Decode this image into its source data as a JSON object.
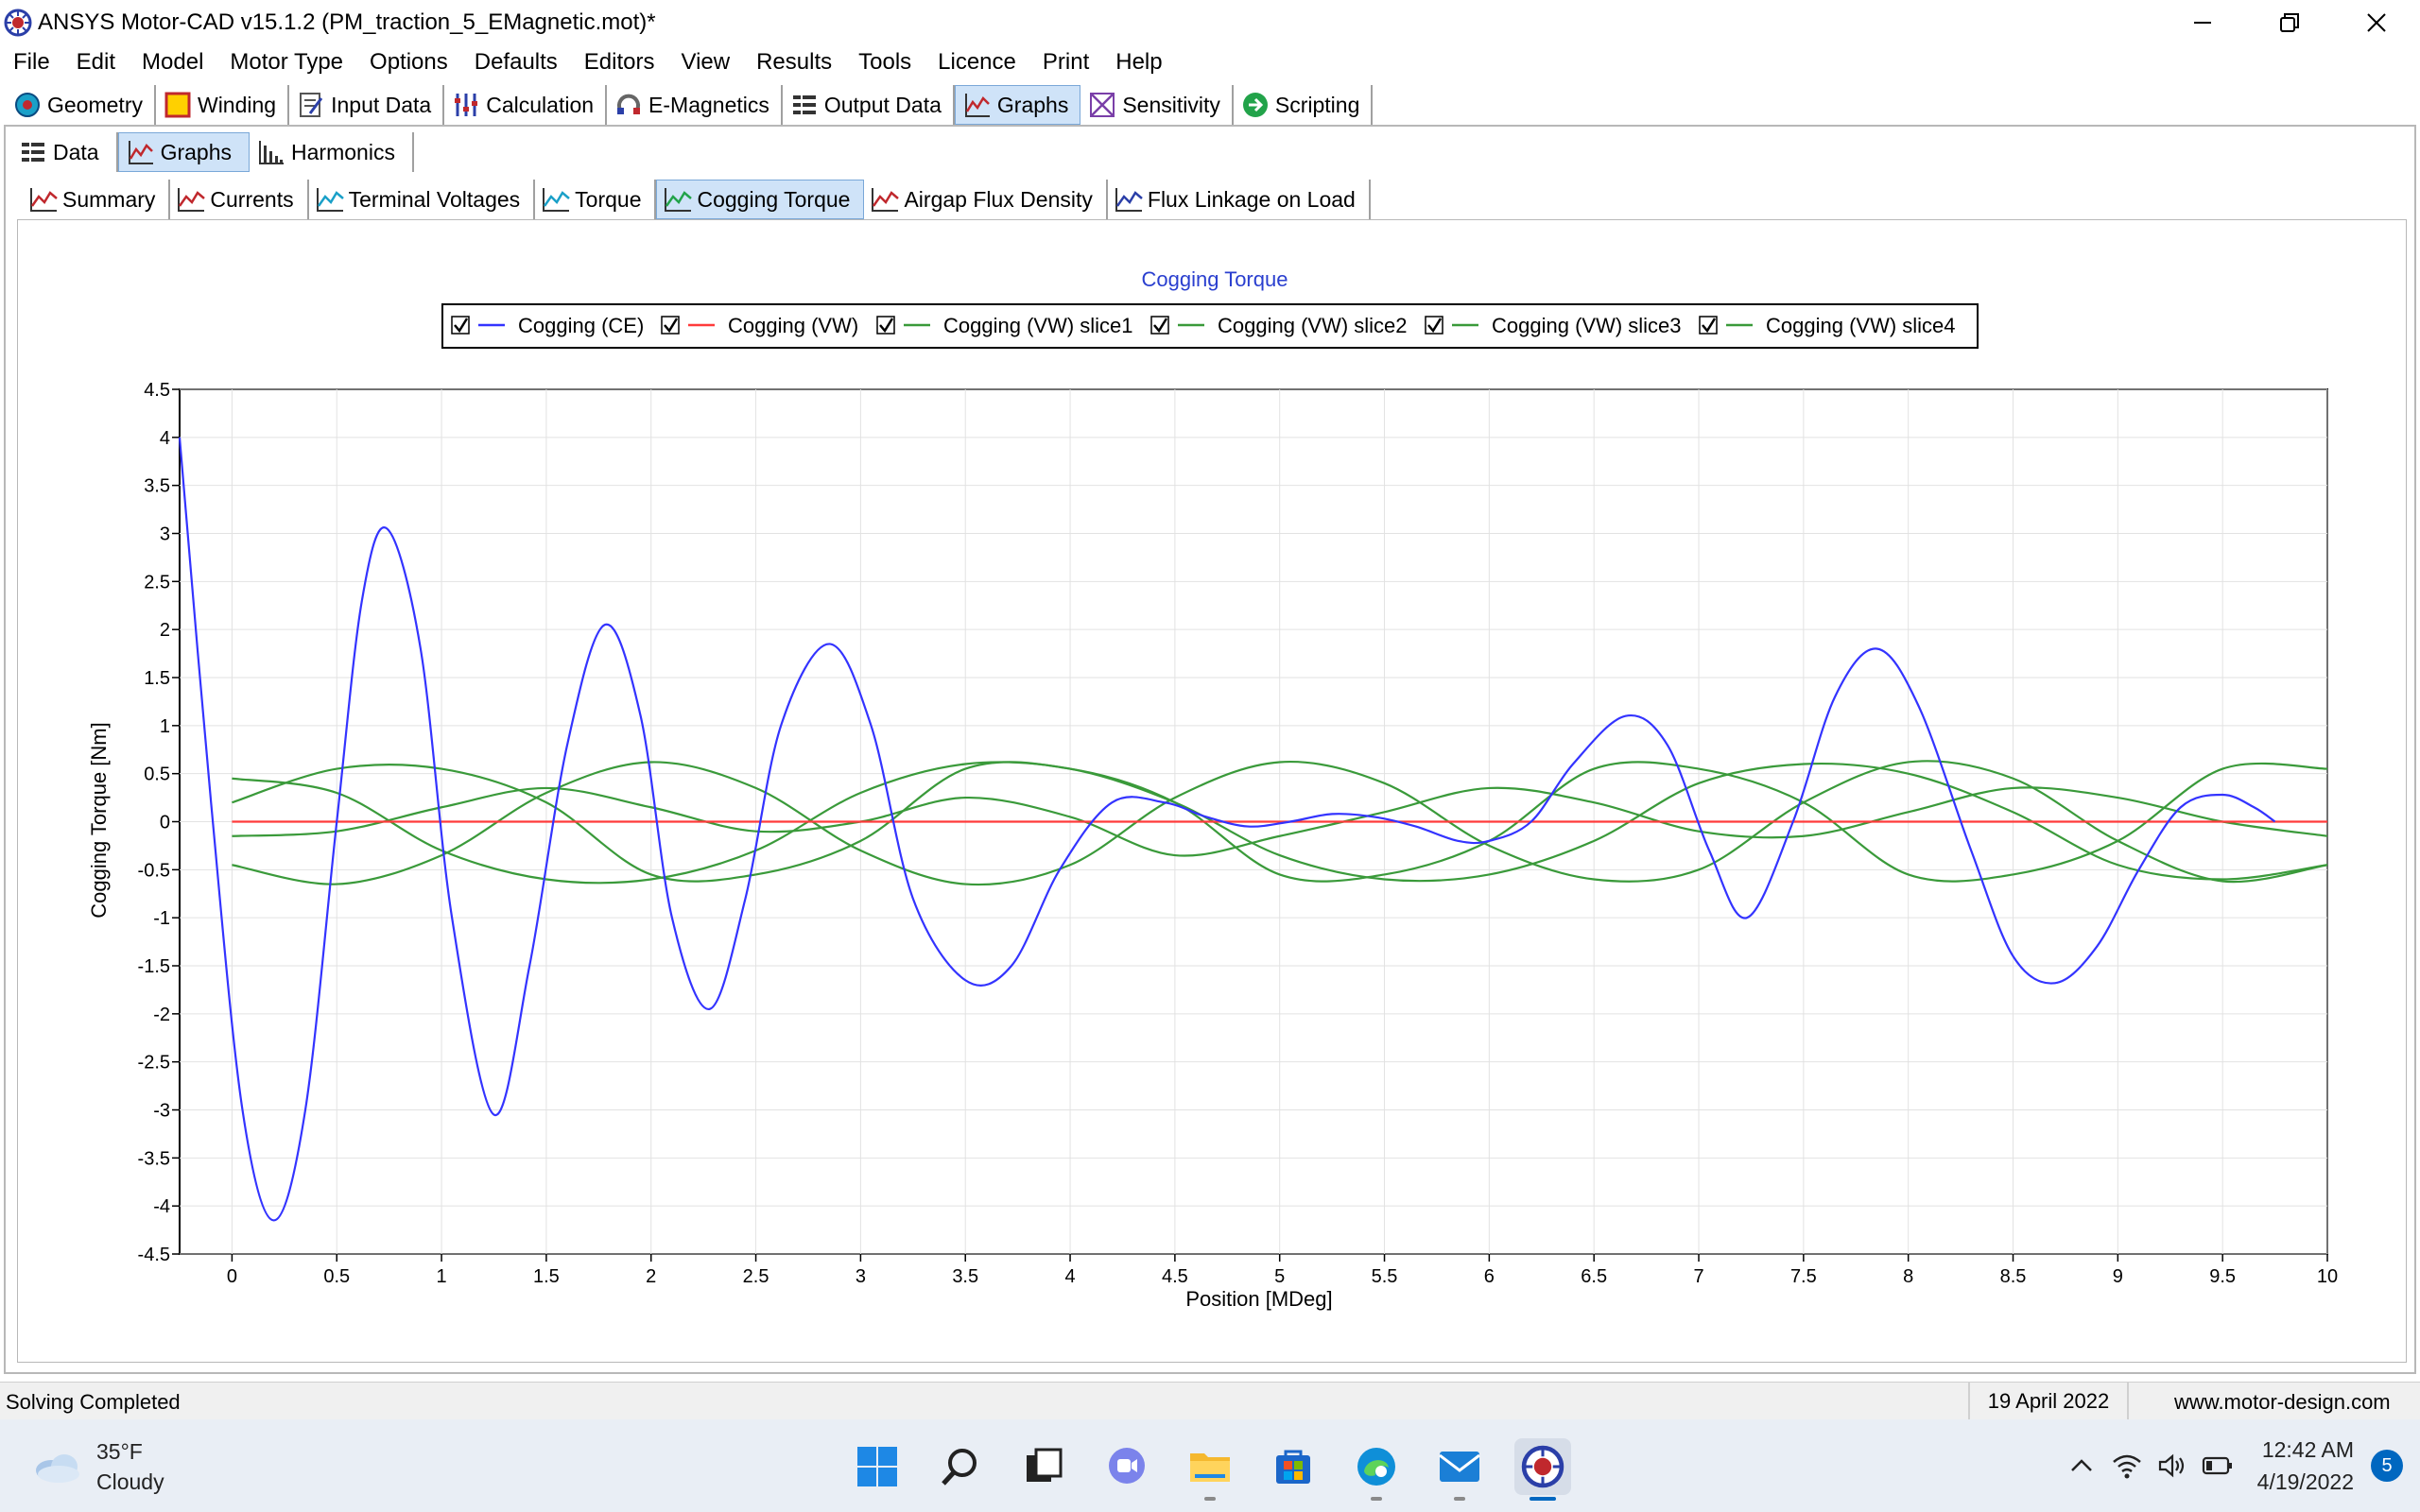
{
  "window": {
    "title": "ANSYS Motor-CAD v15.1.2 (PM_traction_5_EMagnetic.mot)*"
  },
  "menu": [
    "File",
    "Edit",
    "Model",
    "Motor Type",
    "Options",
    "Defaults",
    "Editors",
    "View",
    "Results",
    "Tools",
    "Licence",
    "Print",
    "Help"
  ],
  "toolbar": [
    {
      "label": "Geometry",
      "icon": "geometry-icon"
    },
    {
      "label": "Winding",
      "icon": "winding-icon"
    },
    {
      "label": "Input Data",
      "icon": "input-data-icon"
    },
    {
      "label": "Calculation",
      "icon": "calculation-icon"
    },
    {
      "label": "E-Magnetics",
      "icon": "emagnetics-icon"
    },
    {
      "label": "Output Data",
      "icon": "output-data-icon"
    },
    {
      "label": "Graphs",
      "icon": "graphs-icon",
      "active": true
    },
    {
      "label": "Sensitivity",
      "icon": "sensitivity-icon"
    },
    {
      "label": "Scripting",
      "icon": "scripting-icon"
    }
  ],
  "subtabs": [
    {
      "label": "Data",
      "icon": "data-icon"
    },
    {
      "label": "Graphs",
      "icon": "graphs-icon",
      "active": true
    },
    {
      "label": "Harmonics",
      "icon": "harmonics-icon"
    }
  ],
  "graphtabs": [
    {
      "label": "Summary"
    },
    {
      "label": "Currents"
    },
    {
      "label": "Terminal Voltages"
    },
    {
      "label": "Torque"
    },
    {
      "label": "Cogging Torque",
      "active": true
    },
    {
      "label": "Airgap Flux Density"
    },
    {
      "label": "Flux Linkage on Load"
    }
  ],
  "chart_data": {
    "type": "line",
    "title": "Cogging Torque",
    "xlabel": "Position [MDeg]",
    "ylabel": "Cogging Torque [Nm]",
    "xlim": [
      -0.25,
      10
    ],
    "ylim": [
      -4.5,
      4.5
    ],
    "xticks": [
      "0",
      "0.5",
      "1",
      "1.5",
      "2",
      "2.5",
      "3",
      "3.5",
      "4",
      "4.5",
      "5",
      "5.5",
      "6",
      "6.5",
      "7",
      "7.5",
      "8",
      "8.5",
      "9",
      "9.5",
      "10"
    ],
    "yticks": [
      "4.5",
      "4",
      "3.5",
      "3",
      "2.5",
      "2",
      "1.5",
      "1",
      "0.5",
      "0",
      "-0.5",
      "-1",
      "-1.5",
      "-2",
      "-2.5",
      "-3",
      "-3.5",
      "-4",
      "-4.5"
    ],
    "grid": true,
    "legend_position": "top",
    "series": [
      {
        "name": "Cogging (CE)",
        "color": "#3333ff",
        "checked": true,
        "x": [
          -0.25,
          -0.1,
          0.05,
          0.2,
          0.35,
          0.5,
          0.62,
          0.74,
          0.9,
          1.05,
          1.25,
          1.42,
          1.6,
          1.78,
          1.95,
          2.1,
          2.28,
          2.45,
          2.62,
          2.85,
          3.05,
          3.25,
          3.5,
          3.72,
          3.95,
          4.2,
          4.45,
          4.65,
          4.85,
          5.05,
          5.25,
          5.45,
          5.65,
          5.85,
          6.0,
          6.2,
          6.4,
          6.65,
          6.85,
          7.05,
          7.23,
          7.45,
          7.65,
          7.85,
          8.05,
          8.3,
          8.5,
          8.7,
          8.9,
          9.1,
          9.3,
          9.5,
          9.65,
          9.75
        ],
        "y": [
          4.0,
          0.2,
          -3.0,
          -4.15,
          -3.0,
          0.0,
          2.3,
          3.05,
          1.8,
          -1.0,
          -3.05,
          -1.5,
          0.8,
          2.05,
          1.1,
          -1.0,
          -1.95,
          -0.8,
          1.0,
          1.85,
          1.0,
          -0.8,
          -1.65,
          -1.5,
          -0.5,
          0.2,
          0.2,
          0.05,
          -0.05,
          0.0,
          0.08,
          0.05,
          -0.05,
          -0.2,
          -0.2,
          0.0,
          0.6,
          1.1,
          0.8,
          -0.3,
          -1.0,
          0.0,
          1.3,
          1.8,
          1.2,
          -0.3,
          -1.4,
          -1.68,
          -1.3,
          -0.5,
          0.15,
          0.28,
          0.15,
          0.0
        ]
      },
      {
        "name": "Cogging (VW)",
        "color": "#ff3b3b",
        "checked": true,
        "x": [
          0,
          10
        ],
        "y": [
          0,
          0
        ]
      },
      {
        "name": "Cogging (VW) slice1",
        "color": "#3a9a3a",
        "checked": true,
        "x": [
          0,
          0.5,
          1.0,
          1.5,
          2.0,
          2.5,
          3.0,
          3.5,
          4.0,
          4.5,
          5.0,
          5.5,
          6.0,
          6.5,
          7.0,
          7.5,
          8.0,
          8.5,
          9.0,
          9.5,
          10.0
        ],
        "y": [
          0.2,
          0.55,
          0.55,
          0.2,
          -0.55,
          -0.55,
          -0.2,
          0.55,
          0.55,
          0.2,
          -0.55,
          -0.55,
          -0.2,
          0.55,
          0.55,
          0.2,
          -0.55,
          -0.55,
          -0.2,
          0.55,
          0.55
        ]
      },
      {
        "name": "Cogging (VW) slice2",
        "color": "#3a9a3a",
        "checked": true,
        "x": [
          0,
          0.5,
          1.0,
          1.5,
          2.0,
          2.5,
          3.0,
          3.5,
          4.0,
          4.5,
          5.0,
          5.5,
          6.0,
          6.5,
          7.0,
          7.5,
          8.0,
          8.5,
          9.0,
          9.5,
          10.0
        ],
        "y": [
          0.45,
          0.3,
          -0.3,
          -0.6,
          -0.6,
          -0.3,
          0.3,
          0.6,
          0.55,
          0.2,
          -0.35,
          -0.6,
          -0.55,
          -0.2,
          0.4,
          0.6,
          0.5,
          0.1,
          -0.45,
          -0.6,
          -0.45
        ]
      },
      {
        "name": "Cogging (VW) slice3",
        "color": "#3a9a3a",
        "checked": true,
        "x": [
          0,
          0.5,
          1.0,
          1.5,
          2.0,
          2.5,
          3.0,
          3.5,
          4.0,
          4.5,
          5.0,
          5.5,
          6.0,
          6.5,
          7.0,
          7.5,
          8.0,
          8.5,
          9.0,
          9.5,
          10.0
        ],
        "y": [
          -0.45,
          -0.65,
          -0.35,
          0.3,
          0.62,
          0.35,
          -0.3,
          -0.65,
          -0.45,
          0.25,
          0.62,
          0.4,
          -0.25,
          -0.6,
          -0.5,
          0.2,
          0.62,
          0.45,
          -0.2,
          -0.62,
          -0.45
        ]
      },
      {
        "name": "Cogging (VW) slice4",
        "color": "#3a9a3a",
        "checked": true,
        "x": [
          0,
          0.5,
          1.0,
          1.5,
          2.0,
          2.5,
          3.0,
          3.5,
          4.0,
          4.5,
          5.0,
          5.5,
          6.0,
          6.5,
          7.0,
          7.5,
          8.0,
          8.5,
          9.0,
          9.5,
          10.0
        ],
        "y": [
          -0.15,
          -0.1,
          0.15,
          0.35,
          0.15,
          -0.1,
          0.0,
          0.25,
          0.05,
          -0.35,
          -0.15,
          0.1,
          0.35,
          0.2,
          -0.1,
          -0.15,
          0.1,
          0.35,
          0.25,
          0.0,
          -0.15
        ]
      }
    ]
  },
  "status": {
    "left": "Solving Completed",
    "date": "19 April 2022",
    "url": "www.motor-design.com"
  },
  "taskbar": {
    "weather_temp": "35°F",
    "weather_desc": "Cloudy",
    "time": "12:42 AM",
    "date": "4/19/2022",
    "notifications": "5"
  }
}
